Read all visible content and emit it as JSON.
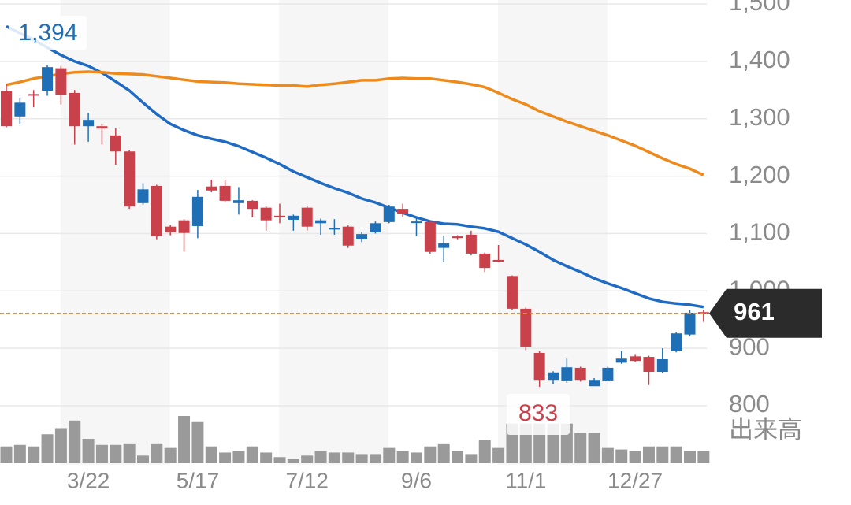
{
  "chart_data": {
    "type": "candlestick",
    "categories": [
      null,
      null,
      null,
      null,
      null,
      null,
      "3/22",
      null,
      null,
      null,
      null,
      null,
      null,
      null,
      "5/17",
      null,
      null,
      null,
      null,
      null,
      null,
      null,
      "7/12",
      null,
      null,
      null,
      null,
      null,
      null,
      null,
      "9/6",
      null,
      null,
      null,
      null,
      null,
      null,
      null,
      "11/1",
      null,
      null,
      null,
      null,
      null,
      null,
      null,
      "12/27",
      null,
      null,
      null,
      null,
      null
    ],
    "open": [
      1349,
      1304,
      1343,
      1349,
      1388,
      1345,
      1287,
      1287,
      1271,
      1243,
      1153,
      1183,
      1112,
      1123,
      1113,
      1182,
      1183,
      1153,
      1157,
      1145,
      1131,
      1124,
      1145,
      1118,
      1107,
      1112,
      1091,
      1102,
      1120,
      1143,
      1119,
      1120,
      1075,
      1095,
      1098,
      1065,
      1054,
      1026,
      969,
      892,
      845,
      844,
      866,
      834,
      844,
      875,
      886,
      885,
      859,
      895,
      924,
      963
    ],
    "high": [
      1360,
      1335,
      1350,
      1394,
      1392,
      1350,
      1310,
      1290,
      1283,
      1245,
      1188,
      1185,
      1115,
      1125,
      1176,
      1194,
      1194,
      1181,
      1158,
      1147,
      1152,
      1133,
      1147,
      1126,
      1125,
      1114,
      1103,
      1121,
      1150,
      1152,
      1126,
      1122,
      1095,
      1097,
      1105,
      1067,
      1080,
      1027,
      971,
      895,
      860,
      882,
      868,
      848,
      868,
      895,
      890,
      887,
      900,
      928,
      967,
      967
    ],
    "low": [
      1285,
      1290,
      1320,
      1340,
      1325,
      1255,
      1260,
      1255,
      1220,
      1143,
      1150,
      1090,
      1097,
      1068,
      1092,
      1172,
      1155,
      1133,
      1128,
      1105,
      1118,
      1105,
      1105,
      1098,
      1098,
      1075,
      1085,
      1100,
      1118,
      1128,
      1095,
      1065,
      1050,
      1090,
      1062,
      1033,
      1050,
      967,
      897,
      833,
      838,
      840,
      842,
      836,
      842,
      873,
      876,
      836,
      857,
      893,
      921,
      946
    ],
    "close": [
      1287,
      1328,
      1341,
      1390,
      1342,
      1287,
      1298,
      1283,
      1243,
      1147,
      1177,
      1095,
      1102,
      1101,
      1164,
      1175,
      1157,
      1158,
      1143,
      1123,
      1128,
      1131,
      1112,
      1123,
      1110,
      1079,
      1099,
      1118,
      1147,
      1134,
      1121,
      1068,
      1083,
      1092,
      1065,
      1040,
      1051,
      969,
      903,
      845,
      858,
      867,
      845,
      845,
      866,
      882,
      878,
      859,
      881,
      926,
      962,
      961
    ],
    "up_color": "#1f6fb7",
    "down_color": "#c8414b",
    "lines": [
      {
        "color": "#1f6bc4",
        "values": [
          1461,
          1449,
          1438,
          1424,
          1411,
          1400,
          1392,
          1380,
          1365,
          1349,
          1328,
          1308,
          1291,
          1280,
          1271,
          1265,
          1260,
          1252,
          1242,
          1232,
          1221,
          1208,
          1198,
          1188,
          1179,
          1171,
          1161,
          1154,
          1145,
          1136,
          1128,
          1121,
          1117,
          1116,
          1112,
          1109,
          1103,
          1092,
          1081,
          1068,
          1054,
          1043,
          1033,
          1022,
          1013,
          1005,
          996,
          987,
          981,
          978,
          976,
          972
        ]
      },
      {
        "color": "#ee8a1c",
        "values": [
          1359,
          1364,
          1370,
          1374,
          1378,
          1381,
          1382,
          1381,
          1379,
          1378,
          1377,
          1374,
          1371,
          1368,
          1365,
          1364,
          1363,
          1361,
          1360,
          1359,
          1358,
          1358,
          1356,
          1359,
          1361,
          1364,
          1367,
          1367,
          1370,
          1371,
          1370,
          1370,
          1367,
          1364,
          1360,
          1355,
          1345,
          1334,
          1325,
          1313,
          1304,
          1295,
          1287,
          1279,
          1271,
          1262,
          1253,
          1242,
          1231,
          1221,
          1213,
          1202
        ]
      }
    ],
    "volume": [
      22,
      24,
      22,
      38,
      46,
      56,
      32,
      24,
      24,
      26,
      10,
      26,
      20,
      62,
      54,
      22,
      14,
      16,
      22,
      14,
      8,
      6,
      10,
      16,
      14,
      14,
      12,
      12,
      20,
      16,
      14,
      22,
      26,
      16,
      12,
      30,
      20,
      52,
      52,
      52,
      52,
      52,
      40,
      40,
      20,
      18,
      16,
      22,
      22,
      22,
      16,
      16
    ],
    "volume_color": "#9a9a9a",
    "volume_label": "出来高",
    "ylim": [
      800,
      1500
    ],
    "yticks": [
      800,
      900,
      {
        "value": 1000,
        "label": "1,000"
      },
      {
        "value": 1100,
        "label": "1,100"
      },
      {
        "value": 1200,
        "label": "1,200"
      },
      {
        "value": 1300,
        "label": "1,300"
      },
      {
        "value": 1400,
        "label": "1,400"
      },
      {
        "value": 1500,
        "label": "1,500"
      }
    ],
    "grid": true,
    "last_price": 961,
    "high_label": {
      "value": 1394,
      "label": "1,394"
    },
    "low_label": 833
  }
}
